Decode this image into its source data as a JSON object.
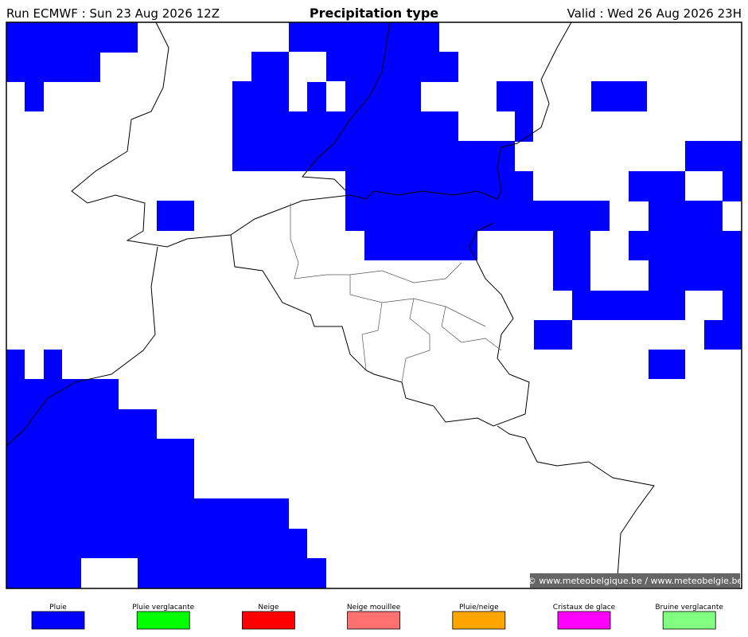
{
  "header": {
    "run": "Run ECMWF : Sun 23 Aug 2026 12Z",
    "title": "Precipitation type",
    "valid": "Valid : Wed 26 Aug 2026 23H"
  },
  "map": {
    "credit": "© www.meteobelgique.be / www.meteobelgie.be"
  },
  "legend": {
    "items": [
      {
        "label": "Pluie",
        "color": "#0000ff"
      },
      {
        "label": "Pluie verglacante",
        "color": "#00ff00"
      },
      {
        "label": "Neige",
        "color": "#ff0000"
      },
      {
        "label": "Neige mouillee",
        "color": "#ff7070"
      },
      {
        "label": "Pluie/neige",
        "color": "#ffa500"
      },
      {
        "label": "Cristaux de glace",
        "color": "#ff00ff"
      },
      {
        "label": "Bruine verglacante",
        "color": "#80ff80"
      }
    ]
  }
}
